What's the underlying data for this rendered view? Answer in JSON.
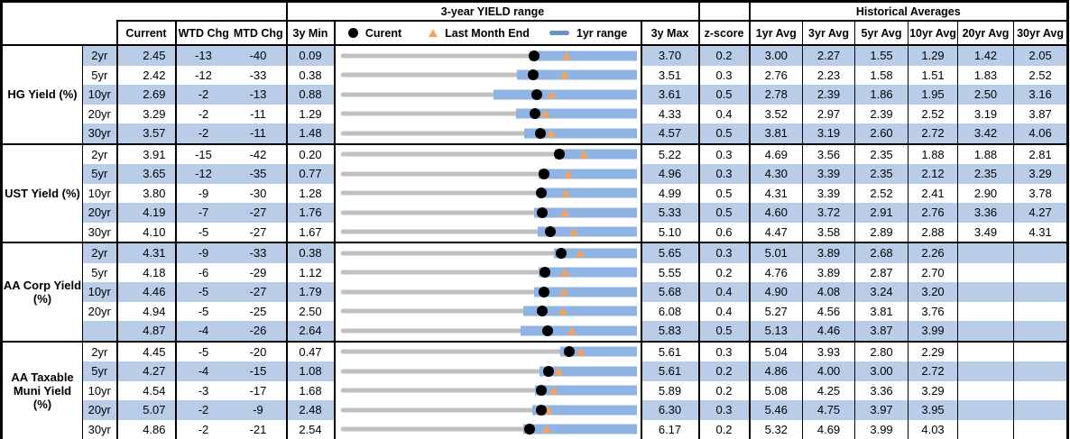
{
  "headers": {
    "current": "Current",
    "wtd_chg": "WTD Chg",
    "mtd_chg": "MTD Chg",
    "min_3y": "3y Min",
    "max_3y": "3y Max",
    "z_score": "z-score",
    "historical": "Historical Averages",
    "avg_cols": [
      "1yr Avg",
      "3yr Avg",
      "5yr Avg",
      "10yr Avg",
      "20yr Avg",
      "30yr Avg"
    ]
  },
  "colors": {
    "row_shade": "#B9CDE8",
    "bar_1yr": "#8FB4E4",
    "legend_dash": "#6494CE",
    "gray_track": "#C0C0C0",
    "current_dot": "#000000",
    "triangle_orange": "#F6A25B"
  },
  "chart_data": {
    "type": "bar",
    "subtype": "horizontal-range-bullet",
    "title": "3-year YIELD range",
    "legend_entries": [
      "Curent",
      "Last Month End",
      "1yr range"
    ],
    "legend_position": "top",
    "x_encoding": "yield in %, each row scaled from its own 3y Min to 3y Max; gray track = 3y range, blue bar = 1yr range (estimated low), dot = current, triangle = last month end (current - MTD chg/100)",
    "sections": [
      {
        "id": "hg",
        "label_lines": [
          "HG Yield (%)"
        ],
        "rows": [
          {
            "tenor": "2yr",
            "current": 2.45,
            "wtd": -13,
            "mtd": -40,
            "min_3y": 0.09,
            "max_3y": 3.7,
            "z": 0.2,
            "low_1yr": 2.4,
            "high_1yr": 3.7,
            "last_month_end": 2.85,
            "avgs": [
              3.0,
              2.27,
              1.55,
              1.29,
              1.42,
              2.05
            ]
          },
          {
            "tenor": "5yr",
            "current": 2.42,
            "wtd": -12,
            "mtd": -33,
            "min_3y": 0.38,
            "max_3y": 3.51,
            "z": 0.3,
            "low_1yr": 2.25,
            "high_1yr": 3.51,
            "last_month_end": 2.75,
            "avgs": [
              2.76,
              2.23,
              1.58,
              1.51,
              1.83,
              2.52
            ]
          },
          {
            "tenor": "10yr",
            "current": 2.69,
            "wtd": -2,
            "mtd": -13,
            "min_3y": 0.88,
            "max_3y": 3.61,
            "z": 0.5,
            "low_1yr": 2.29,
            "high_1yr": 3.61,
            "last_month_end": 2.82,
            "avgs": [
              2.78,
              2.39,
              1.86,
              1.95,
              2.5,
              3.16
            ]
          },
          {
            "tenor": "20yr",
            "current": 3.29,
            "wtd": -2,
            "mtd": -11,
            "min_3y": 1.29,
            "max_3y": 4.33,
            "z": 0.4,
            "low_1yr": 3.09,
            "high_1yr": 4.33,
            "last_month_end": 3.4,
            "avgs": [
              3.52,
              2.97,
              2.39,
              2.52,
              3.19,
              3.87
            ]
          },
          {
            "tenor": "30yr",
            "current": 3.57,
            "wtd": -2,
            "mtd": -11,
            "min_3y": 1.48,
            "max_3y": 4.57,
            "z": 0.5,
            "low_1yr": 3.4,
            "high_1yr": 4.57,
            "last_month_end": 3.68,
            "avgs": [
              3.81,
              3.19,
              2.6,
              2.72,
              3.42,
              4.06
            ]
          }
        ]
      },
      {
        "id": "ust",
        "label_lines": [
          "UST Yield (%)"
        ],
        "rows": [
          {
            "tenor": "2yr",
            "current": 3.91,
            "wtd": -15,
            "mtd": -42,
            "min_3y": 0.2,
            "max_3y": 5.22,
            "z": 0.3,
            "low_1yr": 3.83,
            "high_1yr": 5.22,
            "last_month_end": 4.33,
            "avgs": [
              4.69,
              3.56,
              2.35,
              1.88,
              1.88,
              2.81
            ]
          },
          {
            "tenor": "5yr",
            "current": 3.65,
            "wtd": -12,
            "mtd": -35,
            "min_3y": 0.77,
            "max_3y": 4.96,
            "z": 0.3,
            "low_1yr": 3.57,
            "high_1yr": 4.96,
            "last_month_end": 4.0,
            "avgs": [
              4.3,
              3.39,
              2.35,
              2.12,
              2.35,
              3.29
            ]
          },
          {
            "tenor": "10yr",
            "current": 3.8,
            "wtd": -9,
            "mtd": -30,
            "min_3y": 1.28,
            "max_3y": 4.99,
            "z": 0.5,
            "low_1yr": 3.78,
            "high_1yr": 4.99,
            "last_month_end": 4.1,
            "avgs": [
              4.31,
              3.39,
              2.52,
              2.41,
              2.9,
              3.78
            ]
          },
          {
            "tenor": "20yr",
            "current": 4.19,
            "wtd": -7,
            "mtd": -27,
            "min_3y": 1.76,
            "max_3y": 5.33,
            "z": 0.5,
            "low_1yr": 4.1,
            "high_1yr": 5.33,
            "last_month_end": 4.46,
            "avgs": [
              4.6,
              3.72,
              2.91,
              2.76,
              3.36,
              4.27
            ]
          },
          {
            "tenor": "30yr",
            "current": 4.1,
            "wtd": -5,
            "mtd": -27,
            "min_3y": 1.67,
            "max_3y": 5.1,
            "z": 0.6,
            "low_1yr": 3.96,
            "high_1yr": 5.1,
            "last_month_end": 4.37,
            "avgs": [
              4.47,
              3.58,
              2.89,
              2.88,
              3.49,
              4.31
            ]
          }
        ]
      },
      {
        "id": "aa_corp",
        "label_lines": [
          "AA Corp Yield",
          "(%)"
        ],
        "rows": [
          {
            "tenor": "2yr",
            "current": 4.31,
            "wtd": -9,
            "mtd": -33,
            "min_3y": 0.38,
            "max_3y": 5.65,
            "z": 0.3,
            "low_1yr": 4.18,
            "high_1yr": 5.65,
            "last_month_end": 4.64,
            "avgs": [
              5.01,
              3.89,
              2.68,
              2.26,
              null,
              null
            ]
          },
          {
            "tenor": "5yr",
            "current": 4.18,
            "wtd": -6,
            "mtd": -29,
            "min_3y": 1.12,
            "max_3y": 5.55,
            "z": 0.2,
            "low_1yr": 4.08,
            "high_1yr": 5.55,
            "last_month_end": 4.47,
            "avgs": [
              4.76,
              3.89,
              2.87,
              2.7,
              null,
              null
            ]
          },
          {
            "tenor": "10yr",
            "current": 4.46,
            "wtd": -5,
            "mtd": -27,
            "min_3y": 1.79,
            "max_3y": 5.68,
            "z": 0.4,
            "low_1yr": 4.33,
            "high_1yr": 5.68,
            "last_month_end": 4.73,
            "avgs": [
              4.9,
              4.08,
              3.24,
              3.2,
              null,
              null
            ]
          },
          {
            "tenor": "20yr",
            "current": 4.94,
            "wtd": -5,
            "mtd": -25,
            "min_3y": 2.5,
            "max_3y": 6.08,
            "z": 0.4,
            "low_1yr": 4.71,
            "high_1yr": 6.08,
            "last_month_end": 5.19,
            "avgs": [
              5.27,
              4.56,
              3.81,
              3.76,
              null,
              null
            ]
          },
          {
            "tenor": "",
            "current": 4.87,
            "wtd": -4,
            "mtd": -26,
            "min_3y": 2.64,
            "max_3y": 5.83,
            "z": 0.5,
            "low_1yr": 4.58,
            "high_1yr": 5.83,
            "last_month_end": 5.13,
            "avgs": [
              5.13,
              4.46,
              3.87,
              3.99,
              null,
              null
            ]
          }
        ]
      },
      {
        "id": "aa_muni",
        "label_lines": [
          "AA Taxable",
          "Muni Yield",
          "(%)"
        ],
        "rows": [
          {
            "tenor": "2yr",
            "current": 4.45,
            "wtd": -5,
            "mtd": -20,
            "min_3y": 0.47,
            "max_3y": 5.61,
            "z": 0.3,
            "low_1yr": 4.29,
            "high_1yr": 5.61,
            "last_month_end": 4.65,
            "avgs": [
              5.04,
              3.93,
              2.8,
              2.29,
              null,
              null
            ]
          },
          {
            "tenor": "5yr",
            "current": 4.27,
            "wtd": -4,
            "mtd": -15,
            "min_3y": 1.08,
            "max_3y": 5.61,
            "z": 0.2,
            "low_1yr": 4.13,
            "high_1yr": 5.61,
            "last_month_end": 4.42,
            "avgs": [
              4.86,
              4.0,
              3.0,
              2.72,
              null,
              null
            ]
          },
          {
            "tenor": "10yr",
            "current": 4.54,
            "wtd": -3,
            "mtd": -17,
            "min_3y": 1.68,
            "max_3y": 5.89,
            "z": 0.2,
            "low_1yr": 4.45,
            "high_1yr": 5.89,
            "last_month_end": 4.71,
            "avgs": [
              5.08,
              4.25,
              3.36,
              3.29,
              null,
              null
            ]
          },
          {
            "tenor": "20yr",
            "current": 5.07,
            "wtd": -2,
            "mtd": -9,
            "min_3y": 2.48,
            "max_3y": 6.3,
            "z": 0.3,
            "low_1yr": 4.95,
            "high_1yr": 6.3,
            "last_month_end": 5.16,
            "avgs": [
              5.46,
              4.75,
              3.97,
              3.95,
              null,
              null
            ]
          },
          {
            "tenor": "30yr",
            "current": 4.86,
            "wtd": -2,
            "mtd": -21,
            "min_3y": 2.54,
            "max_3y": 6.17,
            "z": 0.2,
            "low_1yr": 4.78,
            "high_1yr": 6.17,
            "last_month_end": 5.07,
            "avgs": [
              5.32,
              4.69,
              3.99,
              4.03,
              null,
              null
            ]
          }
        ]
      }
    ]
  }
}
